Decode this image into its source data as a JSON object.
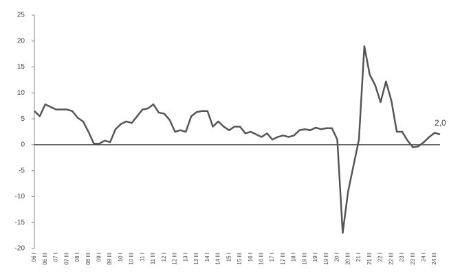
{
  "chart_data": {
    "type": "line",
    "categories": [
      "06 I",
      null,
      "06 III",
      null,
      "07 I",
      null,
      "07 III",
      null,
      "08 I",
      null,
      "08 III",
      null,
      "09 I",
      null,
      "09 III",
      null,
      "10 I",
      null,
      "10 III",
      null,
      "11 I",
      null,
      "11 III",
      null,
      "12 I",
      null,
      "12 III",
      null,
      "13 I",
      null,
      "13 III",
      null,
      "14 I",
      null,
      "14 III",
      null,
      "15 I",
      null,
      "15 III",
      null,
      "16 I",
      null,
      "16 III",
      null,
      "17 I",
      null,
      "17 III",
      null,
      "18 I",
      null,
      "18 III",
      null,
      "19 I",
      null,
      "19 III",
      null,
      "20 I",
      null,
      "20 III",
      null,
      "21 I",
      null,
      "21 III",
      null,
      "22 I",
      null,
      "22 III",
      null,
      "23 I",
      null,
      "23 III",
      null,
      "24 I",
      null,
      "24 III",
      null
    ],
    "series": [
      {
        "color": "#555555",
        "values": [
          6.5,
          5.5,
          7.8,
          7.3,
          6.8,
          6.8,
          6.8,
          6.5,
          5.2,
          4.5,
          2.5,
          0.2,
          0.2,
          0.8,
          0.5,
          3.0,
          4.0,
          4.5,
          4.2,
          5.5,
          6.8,
          7.0,
          7.8,
          6.2,
          6.0,
          4.8,
          2.5,
          2.8,
          2.5,
          5.5,
          6.3,
          6.5,
          6.5,
          3.5,
          4.5,
          3.5,
          2.8,
          3.5,
          3.5,
          2.2,
          2.5,
          2.0,
          1.5,
          2.2,
          1.0,
          1.5,
          1.8,
          1.5,
          1.8,
          2.8,
          3.0,
          2.8,
          3.3,
          3.0,
          3.2,
          3.2,
          1.0,
          -17,
          -9,
          -4,
          1.0,
          19,
          13.5,
          11.5,
          8.2,
          12.2,
          8.5,
          2.5,
          2.5,
          0.8,
          -0.5,
          -0.3,
          0.5,
          1.5,
          2.3,
          2.0
        ]
      }
    ],
    "annotation": "2,0",
    "ylim": [
      -20,
      25
    ],
    "yticks": [
      -20,
      -15,
      -10,
      -5,
      0,
      5,
      10,
      15,
      20,
      25
    ]
  }
}
